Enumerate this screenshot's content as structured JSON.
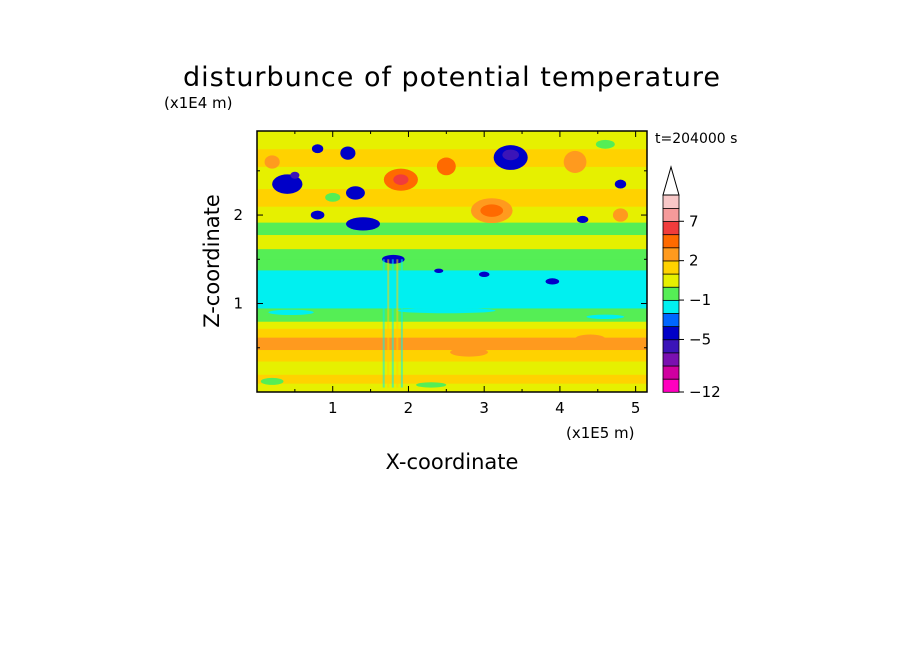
{
  "chart_data": {
    "type": "heatmap",
    "title": "disturbunce of potential temperature",
    "xlabel": "X-coordinate",
    "ylabel": "Z-coordinate",
    "x_unit": "(x1E5 m)",
    "y_unit": "(x1E4 m)",
    "time_label": "t=204000 s",
    "xlim": [
      0,
      5.15
    ],
    "ylim": [
      0,
      2.95
    ],
    "xticks": [
      "1",
      "2",
      "3",
      "4",
      "5"
    ],
    "yticks": [
      "1",
      "2"
    ],
    "colorbar": {
      "tick_labels": [
        "7",
        "2",
        "−1",
        "−5",
        "−12"
      ],
      "colors": [
        "#ff00bf",
        "#d000a0",
        "#7a10b0",
        "#3b14b8",
        "#0000c8",
        "#0066ff",
        "#00f0f0",
        "#55ee55",
        "#e6f000",
        "#ffd200",
        "#ff9a1e",
        "#ff6a00",
        "#f03c3c",
        "#f59a9a",
        "#f8c8c8"
      ]
    },
    "blobs": [
      {
        "x": 0.45,
        "z": 0.9,
        "w": 0.6,
        "h": 0.06,
        "level": 6
      },
      {
        "x": 2.5,
        "z": 0.92,
        "w": 1.3,
        "h": 0.06,
        "level": 6
      },
      {
        "x": 4.6,
        "z": 0.85,
        "w": 0.5,
        "h": 0.05,
        "level": 6
      },
      {
        "x": 3.9,
        "z": 1.25,
        "w": 0.18,
        "h": 0.07,
        "level": 4
      },
      {
        "x": 3.0,
        "z": 1.33,
        "w": 0.14,
        "h": 0.06,
        "level": 4
      },
      {
        "x": 1.8,
        "z": 1.5,
        "w": 0.3,
        "h": 0.1,
        "level": 4
      },
      {
        "x": 2.4,
        "z": 1.37,
        "w": 0.12,
        "h": 0.05,
        "level": 4
      },
      {
        "x": 0.4,
        "z": 2.35,
        "w": 0.4,
        "h": 0.22,
        "level": 4
      },
      {
        "x": 0.5,
        "z": 2.45,
        "w": 0.12,
        "h": 0.08,
        "level": 3
      },
      {
        "x": 1.4,
        "z": 1.9,
        "w": 0.45,
        "h": 0.15,
        "level": 4
      },
      {
        "x": 0.8,
        "z": 2.0,
        "w": 0.18,
        "h": 0.1,
        "level": 4
      },
      {
        "x": 1.3,
        "z": 2.25,
        "w": 0.25,
        "h": 0.15,
        "level": 4
      },
      {
        "x": 0.8,
        "z": 2.75,
        "w": 0.15,
        "h": 0.1,
        "level": 4
      },
      {
        "x": 1.2,
        "z": 2.7,
        "w": 0.2,
        "h": 0.15,
        "level": 4
      },
      {
        "x": 3.35,
        "z": 2.65,
        "w": 0.45,
        "h": 0.28,
        "level": 4
      },
      {
        "x": 3.35,
        "z": 2.68,
        "w": 0.22,
        "h": 0.12,
        "level": 3
      },
      {
        "x": 4.8,
        "z": 2.35,
        "w": 0.15,
        "h": 0.1,
        "level": 4
      },
      {
        "x": 4.3,
        "z": 1.95,
        "w": 0.15,
        "h": 0.08,
        "level": 4
      },
      {
        "x": 0.2,
        "z": 2.6,
        "w": 0.2,
        "h": 0.15,
        "level": 10
      },
      {
        "x": 1.9,
        "z": 2.4,
        "w": 0.45,
        "h": 0.25,
        "level": 11
      },
      {
        "x": 1.9,
        "z": 2.4,
        "w": 0.2,
        "h": 0.12,
        "level": 12
      },
      {
        "x": 2.5,
        "z": 2.55,
        "w": 0.25,
        "h": 0.2,
        "level": 11
      },
      {
        "x": 3.1,
        "z": 2.05,
        "w": 0.55,
        "h": 0.28,
        "level": 10
      },
      {
        "x": 3.1,
        "z": 2.05,
        "w": 0.3,
        "h": 0.14,
        "level": 11
      },
      {
        "x": 4.2,
        "z": 2.6,
        "w": 0.3,
        "h": 0.25,
        "level": 10
      },
      {
        "x": 4.8,
        "z": 2.0,
        "w": 0.2,
        "h": 0.15,
        "level": 10
      },
      {
        "x": 0.4,
        "z": 0.55,
        "w": 0.45,
        "h": 0.1,
        "level": 10
      },
      {
        "x": 2.8,
        "z": 0.45,
        "w": 0.5,
        "h": 0.1,
        "level": 10
      },
      {
        "x": 4.4,
        "z": 0.6,
        "w": 0.4,
        "h": 0.1,
        "level": 10
      },
      {
        "x": 1.0,
        "z": 2.2,
        "w": 0.2,
        "h": 0.1,
        "level": 7
      },
      {
        "x": 4.6,
        "z": 2.8,
        "w": 0.25,
        "h": 0.1,
        "level": 7
      },
      {
        "x": 0.2,
        "z": 0.12,
        "w": 0.3,
        "h": 0.08,
        "level": 7
      },
      {
        "x": 2.3,
        "z": 0.08,
        "w": 0.4,
        "h": 0.06,
        "level": 7
      }
    ]
  }
}
